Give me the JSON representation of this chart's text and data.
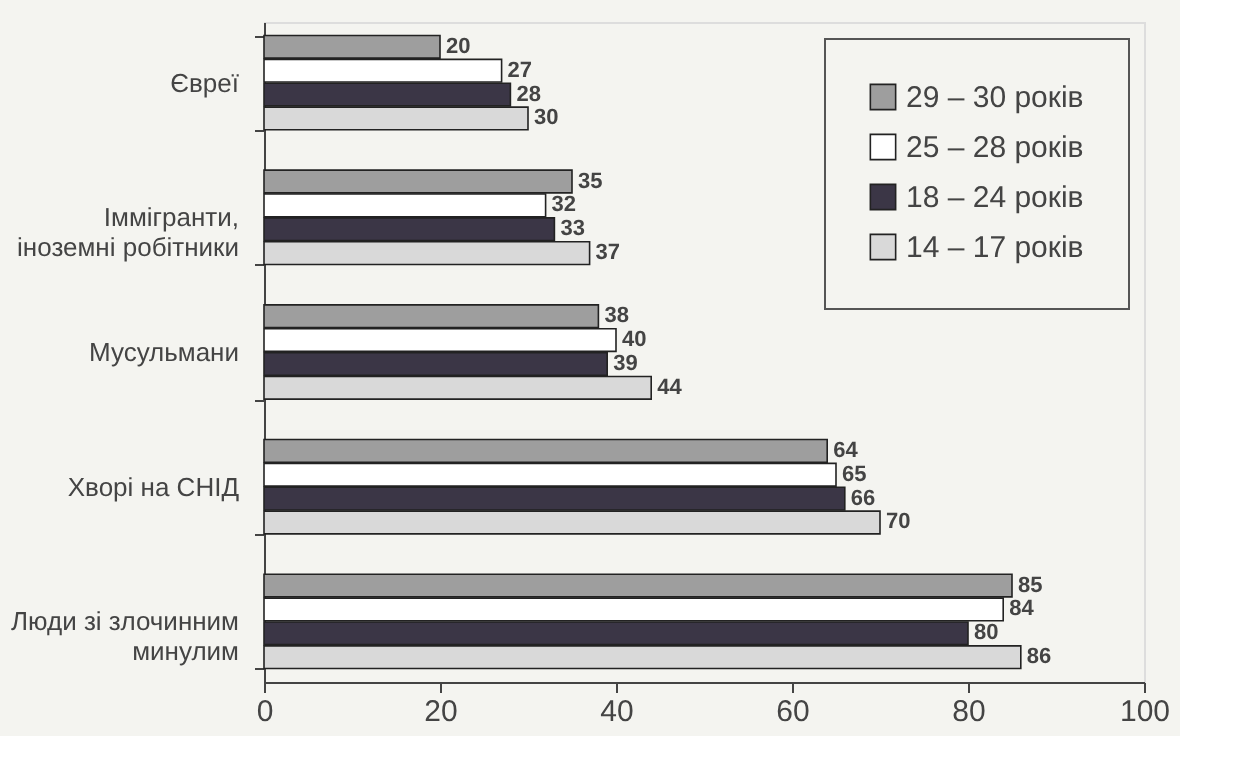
{
  "chart_data": {
    "type": "bar",
    "orientation": "horizontal",
    "categories": [
      "Євреї",
      "Іммігранти, іноземні робітники",
      "Мусульмани",
      "Хворі на СНІД",
      "Люди зі злочинним минулим"
    ],
    "series": [
      {
        "name": "29 – 30 років",
        "color": "#9e9e9e",
        "values": [
          20,
          35,
          38,
          64,
          85
        ]
      },
      {
        "name": "25 – 28 років",
        "color": "#ffffff",
        "values": [
          27,
          32,
          40,
          65,
          84
        ]
      },
      {
        "name": "18 – 24 років",
        "color": "#3b3646",
        "values": [
          28,
          33,
          39,
          66,
          80
        ]
      },
      {
        "name": "14 – 17 років",
        "color": "#d9d9d9",
        "values": [
          30,
          37,
          44,
          70,
          86
        ]
      }
    ],
    "xlim": [
      0,
      100
    ],
    "xticks": [
      0,
      20,
      40,
      60,
      80,
      100
    ],
    "data_labels": true,
    "legend": "top right",
    "grid": false
  }
}
